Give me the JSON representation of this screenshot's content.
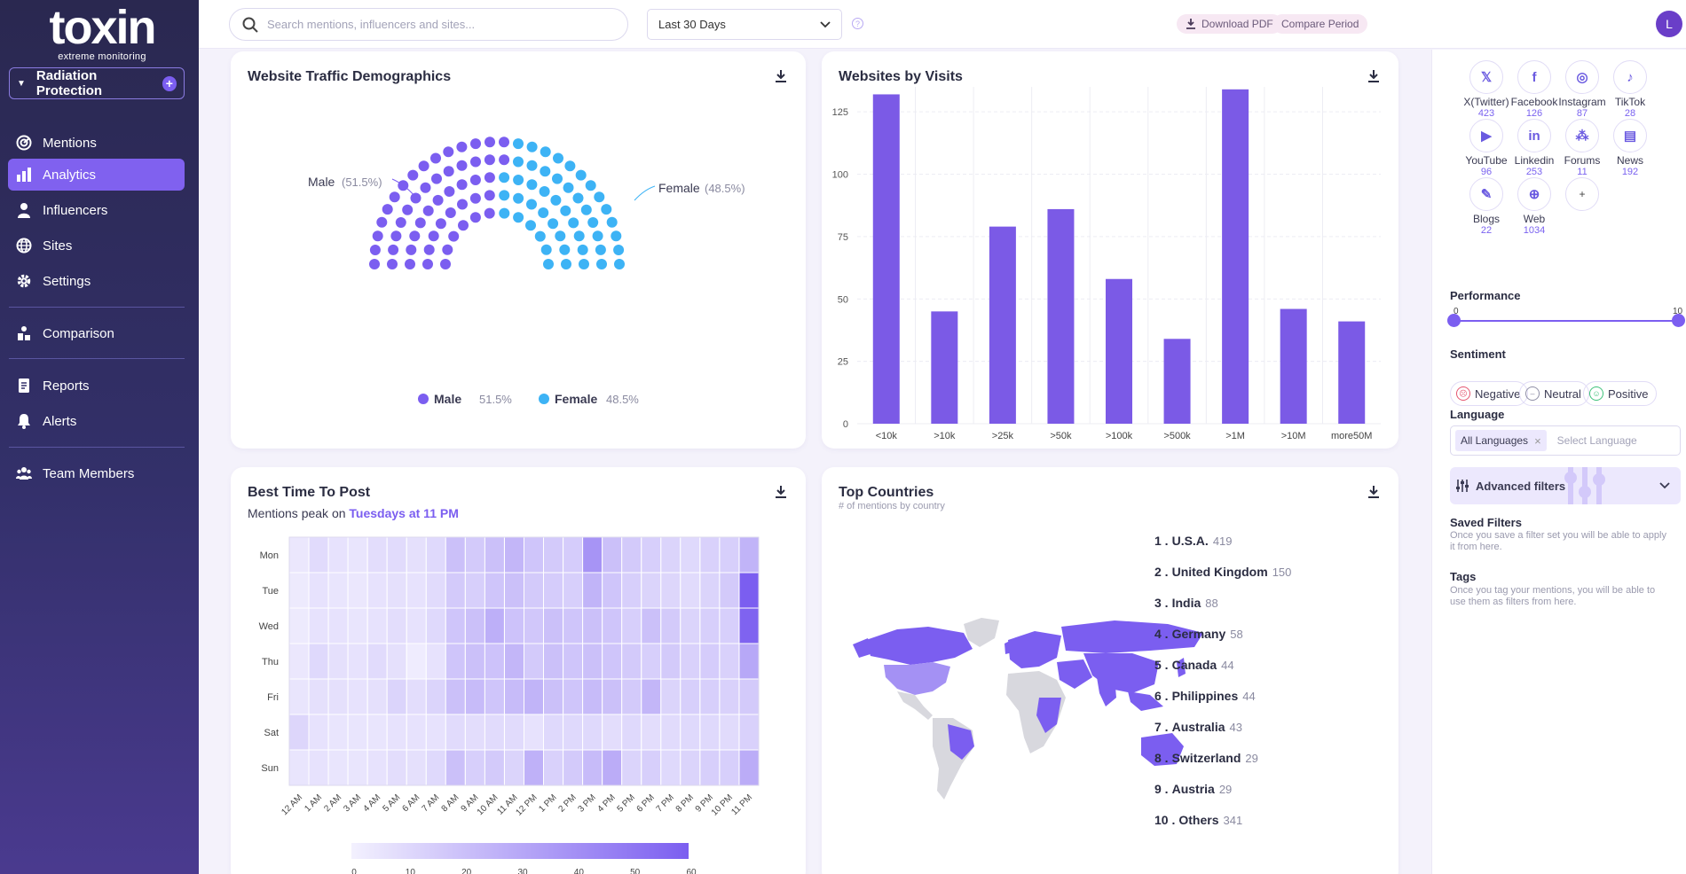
{
  "brand": {
    "name": "toxin",
    "tagline": "extreme monitoring"
  },
  "project": {
    "name": "Radiation Protection"
  },
  "nav": [
    {
      "label": "Mentions",
      "icon": "mentions-icon"
    },
    {
      "label": "Analytics",
      "icon": "analytics-icon",
      "active": true
    },
    {
      "label": "Influencers",
      "icon": "influencers-icon"
    },
    {
      "label": "Sites",
      "icon": "sites-icon"
    },
    {
      "label": "Settings",
      "icon": "settings-icon"
    },
    {
      "label": "Comparison",
      "icon": "comparison-icon"
    },
    {
      "label": "Reports",
      "icon": "reports-icon"
    },
    {
      "label": "Alerts",
      "icon": "alerts-icon"
    },
    {
      "label": "Team Members",
      "icon": "team-icon"
    }
  ],
  "topbar": {
    "search_placeholder": "Search mentions, influencers and sites...",
    "date_range": "Last 30 Days",
    "download_pdf": "Download PDF",
    "compare_period": "Compare Period",
    "avatar_initial": "L"
  },
  "demographics": {
    "title": "Website Traffic Demographics",
    "male_label": "Male",
    "male_pct": "(51.5%)",
    "female_label": "Female",
    "female_pct": "(48.5%)",
    "legend": [
      {
        "name": "Male",
        "value": "51.5%",
        "color": "#7b5ef0"
      },
      {
        "name": "Female",
        "value": "48.5%",
        "color": "#3db3f5"
      }
    ],
    "chart_data": {
      "type": "pie",
      "labels": [
        "Male",
        "Female"
      ],
      "values": [
        51.5,
        48.5
      ]
    }
  },
  "visits": {
    "title": "Websites by Visits",
    "chart_data": {
      "type": "bar",
      "categories": [
        "<10k",
        ">10k",
        ">25k",
        ">50k",
        ">100k",
        ">500k",
        ">1M",
        ">10M",
        "more50M"
      ],
      "values": [
        132,
        45,
        79,
        86,
        58,
        34,
        134,
        46,
        41
      ],
      "yticks": [
        0,
        25,
        50,
        75,
        100,
        125
      ],
      "ylim": [
        0,
        135
      ],
      "color": "#7b5ae6"
    }
  },
  "best_time": {
    "title": "Best Time To Post",
    "subtitle_prefix": "Mentions peak on ",
    "subtitle_highlight": "Tuesdays at 11 PM",
    "days": [
      "Mon",
      "Tue",
      "Wed",
      "Thu",
      "Fri",
      "Sat",
      "Sun"
    ],
    "hours": [
      "12 AM",
      "1 AM",
      "2 AM",
      "3 AM",
      "4 AM",
      "5 AM",
      "6 AM",
      "7 AM",
      "8 AM",
      "9 AM",
      "10 AM",
      "11 AM",
      "12 PM",
      "1 PM",
      "2 PM",
      "3 PM",
      "4 PM",
      "5 PM",
      "6 PM",
      "7 PM",
      "8 PM",
      "9 PM",
      "10 PM",
      "11 PM"
    ],
    "scale_ticks": [
      "0",
      "10",
      "20",
      "30",
      "40",
      "50",
      "60"
    ],
    "chart_data": {
      "type": "heatmap",
      "max": 60,
      "values": [
        [
          4,
          9,
          6,
          5,
          8,
          9,
          7,
          10,
          20,
          16,
          20,
          24,
          18,
          16,
          15,
          38,
          20,
          16,
          14,
          12,
          10,
          13,
          14,
          25
        ],
        [
          3,
          6,
          5,
          4,
          6,
          7,
          6,
          9,
          16,
          14,
          18,
          20,
          16,
          15,
          14,
          25,
          18,
          14,
          12,
          11,
          9,
          12,
          16,
          60
        ],
        [
          3,
          6,
          6,
          5,
          6,
          8,
          6,
          10,
          18,
          20,
          27,
          19,
          17,
          20,
          18,
          20,
          18,
          14,
          20,
          16,
          12,
          14,
          14,
          58
        ],
        [
          4,
          10,
          7,
          6,
          9,
          7,
          2,
          6,
          18,
          20,
          19,
          24,
          16,
          20,
          18,
          20,
          18,
          16,
          14,
          16,
          13,
          15,
          13,
          30
        ],
        [
          5,
          7,
          7,
          6,
          7,
          12,
          8,
          12,
          20,
          22,
          18,
          22,
          25,
          20,
          18,
          22,
          20,
          16,
          24,
          12,
          14,
          14,
          13,
          16
        ],
        [
          11,
          6,
          5,
          5,
          5,
          6,
          6,
          6,
          9,
          8,
          9,
          9,
          6,
          10,
          10,
          10,
          8,
          10,
          8,
          9,
          10,
          10,
          9,
          13
        ],
        [
          5,
          6,
          5,
          5,
          6,
          8,
          7,
          10,
          20,
          14,
          16,
          12,
          26,
          13,
          16,
          22,
          28,
          12,
          14,
          10,
          12,
          14,
          14,
          28
        ]
      ]
    }
  },
  "countries": {
    "title": "Top Countries",
    "subtitle": "# of mentions by country",
    "list": [
      {
        "rank": "1 .",
        "name": "U.S.A.",
        "count": "419"
      },
      {
        "rank": "2 .",
        "name": "United Kingdom",
        "count": "150"
      },
      {
        "rank": "3 .",
        "name": "India",
        "count": "88"
      },
      {
        "rank": "4 .",
        "name": "Germany",
        "count": "58"
      },
      {
        "rank": "5 .",
        "name": "Canada",
        "count": "44"
      },
      {
        "rank": "6 .",
        "name": "Philippines",
        "count": "44"
      },
      {
        "rank": "7 .",
        "name": "Australia",
        "count": "43"
      },
      {
        "rank": "8 .",
        "name": "Switzerland",
        "count": "29"
      },
      {
        "rank": "9 .",
        "name": "Austria",
        "count": "29"
      },
      {
        "rank": "10 .",
        "name": "Others",
        "count": "341"
      }
    ]
  },
  "sources": [
    {
      "name": "X(Twitter)",
      "count": "423",
      "icon": "x-twitter-icon"
    },
    {
      "name": "Facebook",
      "count": "126",
      "icon": "facebook-icon"
    },
    {
      "name": "Instagram",
      "count": "87",
      "icon": "instagram-icon"
    },
    {
      "name": "TikTok",
      "count": "28",
      "icon": "tiktok-icon"
    },
    {
      "name": "YouTube",
      "count": "96",
      "icon": "youtube-icon"
    },
    {
      "name": "Linkedin",
      "count": "253",
      "icon": "linkedin-icon"
    },
    {
      "name": "Forums",
      "count": "11",
      "icon": "forums-icon"
    },
    {
      "name": "News",
      "count": "192",
      "icon": "news-icon"
    },
    {
      "name": "Blogs",
      "count": "22",
      "icon": "blogs-icon"
    },
    {
      "name": "Web",
      "count": "1034",
      "icon": "web-icon"
    }
  ],
  "filters": {
    "performance_label": "Performance",
    "performance_min": "0",
    "performance_max": "10",
    "sentiment_label": "Sentiment",
    "sentiments": [
      {
        "label": "Negative",
        "color": "#e5556f"
      },
      {
        "label": "Neutral",
        "color": "#8f8fa6"
      },
      {
        "label": "Positive",
        "color": "#3ec27a"
      }
    ],
    "language_label": "Language",
    "language_chip": "All Languages",
    "language_placeholder": "Select Language",
    "advanced_label": "Advanced filters",
    "saved_label": "Saved Filters",
    "saved_note": "Once you save a filter set you will be able to apply it from here.",
    "tags_label": "Tags",
    "tags_note": "Once you tag your mentions, you will be able to use them as filters from here."
  },
  "colors": {
    "accent": "#7b5ef0",
    "male": "#7b5ef0",
    "female": "#3db3f5",
    "sidebar": "#2a2850"
  }
}
